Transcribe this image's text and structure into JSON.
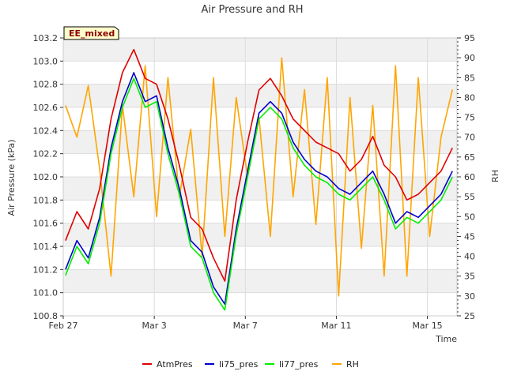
{
  "chart_data": {
    "type": "line",
    "title": "Air Pressure and RH",
    "xlabel": "Time",
    "ylabel": "Air Pressure (kPa)",
    "y2label": "RH",
    "badge": "EE_mixed",
    "x_ticks": [
      {
        "day": 0,
        "label": "Feb 27"
      },
      {
        "day": 4,
        "label": "Mar 3"
      },
      {
        "day": 8,
        "label": "Mar 7"
      },
      {
        "day": 12,
        "label": "Mar 11"
      },
      {
        "day": 16,
        "label": "Mar 15"
      }
    ],
    "xlim_days": [
      0,
      17.3
    ],
    "ylim": [
      100.8,
      103.2
    ],
    "y_ticks": [
      "100.8",
      "101.0",
      "101.2",
      "101.4",
      "101.6",
      "101.8",
      "102.0",
      "102.2",
      "102.4",
      "102.6",
      "102.8",
      "103.0",
      "103.2"
    ],
    "y2lim": [
      25,
      95
    ],
    "y2_ticks": [
      "25",
      "30",
      "35",
      "40",
      "45",
      "50",
      "55",
      "60",
      "65",
      "70",
      "75",
      "80",
      "85",
      "90",
      "95"
    ],
    "grid": true,
    "legend_position": "bottom",
    "colors": {
      "AtmPres": "#e00000",
      "li75_pres": "#0000cc",
      "li77_pres": "#00ee00",
      "RH": "#ffa500"
    },
    "x_days": [
      0.0,
      0.5,
      1.0,
      1.5,
      2.0,
      2.5,
      3.0,
      3.5,
      4.0,
      4.5,
      5.0,
      5.5,
      6.0,
      6.5,
      7.0,
      7.5,
      8.0,
      8.5,
      9.0,
      9.5,
      10.0,
      10.5,
      11.0,
      11.5,
      12.0,
      12.5,
      13.0,
      13.5,
      14.0,
      14.5,
      15.0,
      15.5,
      16.0,
      16.5,
      17.0
    ],
    "series": [
      {
        "name": "AtmPres",
        "axis": "left",
        "values": [
          101.45,
          101.7,
          101.55,
          101.9,
          102.5,
          102.9,
          103.1,
          102.85,
          102.8,
          102.5,
          102.1,
          101.65,
          101.55,
          101.3,
          101.1,
          101.8,
          102.3,
          102.75,
          102.85,
          102.7,
          102.5,
          102.4,
          102.3,
          102.25,
          102.2,
          102.05,
          102.15,
          102.35,
          102.1,
          102.0,
          101.8,
          101.85,
          101.95,
          102.05,
          102.25
        ]
      },
      {
        "name": "li75_pres",
        "axis": "left",
        "values": [
          101.2,
          101.45,
          101.3,
          101.65,
          102.25,
          102.65,
          102.9,
          102.65,
          102.7,
          102.25,
          101.9,
          101.45,
          101.35,
          101.05,
          100.9,
          101.55,
          102.05,
          102.55,
          102.65,
          102.55,
          102.3,
          102.15,
          102.05,
          102.0,
          101.9,
          101.85,
          101.95,
          102.05,
          101.85,
          101.6,
          101.7,
          101.65,
          101.75,
          101.85,
          102.05
        ]
      },
      {
        "name": "li77_pres",
        "axis": "left",
        "values": [
          101.15,
          101.4,
          101.25,
          101.6,
          102.2,
          102.6,
          102.85,
          102.6,
          102.65,
          102.2,
          101.85,
          101.4,
          101.3,
          101.0,
          100.85,
          101.5,
          102.0,
          102.5,
          102.6,
          102.5,
          102.25,
          102.1,
          102.0,
          101.95,
          101.85,
          101.8,
          101.9,
          102.0,
          101.8,
          101.55,
          101.65,
          101.6,
          101.7,
          101.8,
          102.0
        ]
      },
      {
        "name": "RH",
        "axis": "right",
        "values": [
          78,
          70,
          83,
          62,
          35,
          78,
          55,
          88,
          50,
          85,
          55,
          72,
          40,
          85,
          45,
          80,
          60,
          75,
          45,
          90,
          55,
          82,
          48,
          85,
          30,
          80,
          42,
          78,
          35,
          88,
          35,
          85,
          45,
          70,
          82
        ]
      }
    ]
  }
}
